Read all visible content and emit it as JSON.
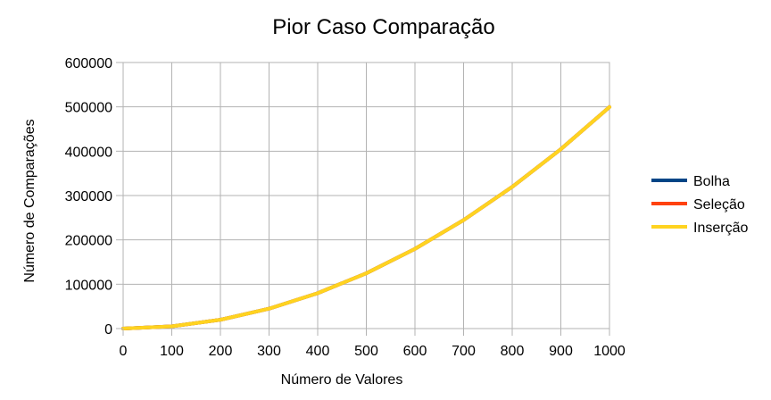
{
  "chart_data": {
    "type": "line",
    "title": "Pior Caso Comparação",
    "xlabel": "Número de Valores",
    "ylabel": "Número de Comparações",
    "x": [
      0,
      100,
      200,
      300,
      400,
      500,
      600,
      700,
      800,
      900,
      1000
    ],
    "xlim": [
      0,
      1000
    ],
    "ylim": [
      0,
      600000
    ],
    "xticks": [
      "0",
      "100",
      "200",
      "300",
      "400",
      "500",
      "600",
      "700",
      "800",
      "900",
      "1000"
    ],
    "yticks": [
      "0",
      "100000",
      "200000",
      "300000",
      "400000",
      "500000",
      "600000"
    ],
    "grid": true,
    "legend_position": "right",
    "series": [
      {
        "name": "Bolha",
        "color": "#004586",
        "values": [
          0,
          4950,
          19900,
          44850,
          79800,
          124750,
          179700,
          244650,
          319600,
          404550,
          499500
        ]
      },
      {
        "name": "Seleção",
        "color": "#ff420e",
        "values": [
          0,
          4950,
          19900,
          44850,
          79800,
          124750,
          179700,
          244650,
          319600,
          404550,
          499500
        ]
      },
      {
        "name": "Inserção",
        "color": "#ffd320",
        "values": [
          0,
          4950,
          19900,
          44850,
          79800,
          124750,
          179700,
          244650,
          319600,
          404550,
          499500
        ]
      }
    ]
  }
}
